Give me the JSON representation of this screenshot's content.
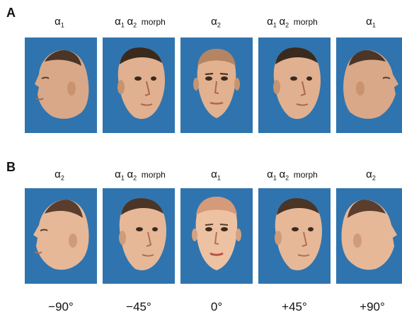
{
  "panels": [
    {
      "letter": "A",
      "labels": [
        {
          "sym1": "α",
          "sub1": "1",
          "sym2": "",
          "sub2": "",
          "morph": ""
        },
        {
          "sym1": "α",
          "sub1": "1",
          "sym2": "α",
          "sub2": "2",
          "morph": "morph"
        },
        {
          "sym1": "α",
          "sub1": "2",
          "sym2": "",
          "sub2": "",
          "morph": ""
        },
        {
          "sym1": "α",
          "sub1": "1",
          "sym2": "α",
          "sub2": "2",
          "morph": "morph"
        },
        {
          "sym1": "α",
          "sub1": "1",
          "sym2": "",
          "sub2": "",
          "morph": ""
        }
      ]
    },
    {
      "letter": "B",
      "labels": [
        {
          "sym1": "α",
          "sub1": "2",
          "sym2": "",
          "sub2": "",
          "morph": ""
        },
        {
          "sym1": "α",
          "sub1": "1",
          "sym2": "α",
          "sub2": "2",
          "morph": "morph"
        },
        {
          "sym1": "α",
          "sub1": "1",
          "sym2": "",
          "sub2": "",
          "morph": ""
        },
        {
          "sym1": "α",
          "sub1": "1",
          "sym2": "α",
          "sub2": "2",
          "morph": "morph"
        },
        {
          "sym1": "α",
          "sub1": "2",
          "sym2": "",
          "sub2": "",
          "morph": ""
        }
      ]
    }
  ],
  "angles": [
    "−90°",
    "−45°",
    "0°",
    "+45°",
    "+90°"
  ],
  "colors": {
    "tile_background": "#2f74ae",
    "skin": "#e2b18f",
    "hair": "#3a2a1e"
  },
  "images": [
    "face-left-profile-image",
    "face-three-quarter-image",
    "face-frontal-image",
    "face-three-quarter-image",
    "face-right-profile-image"
  ]
}
